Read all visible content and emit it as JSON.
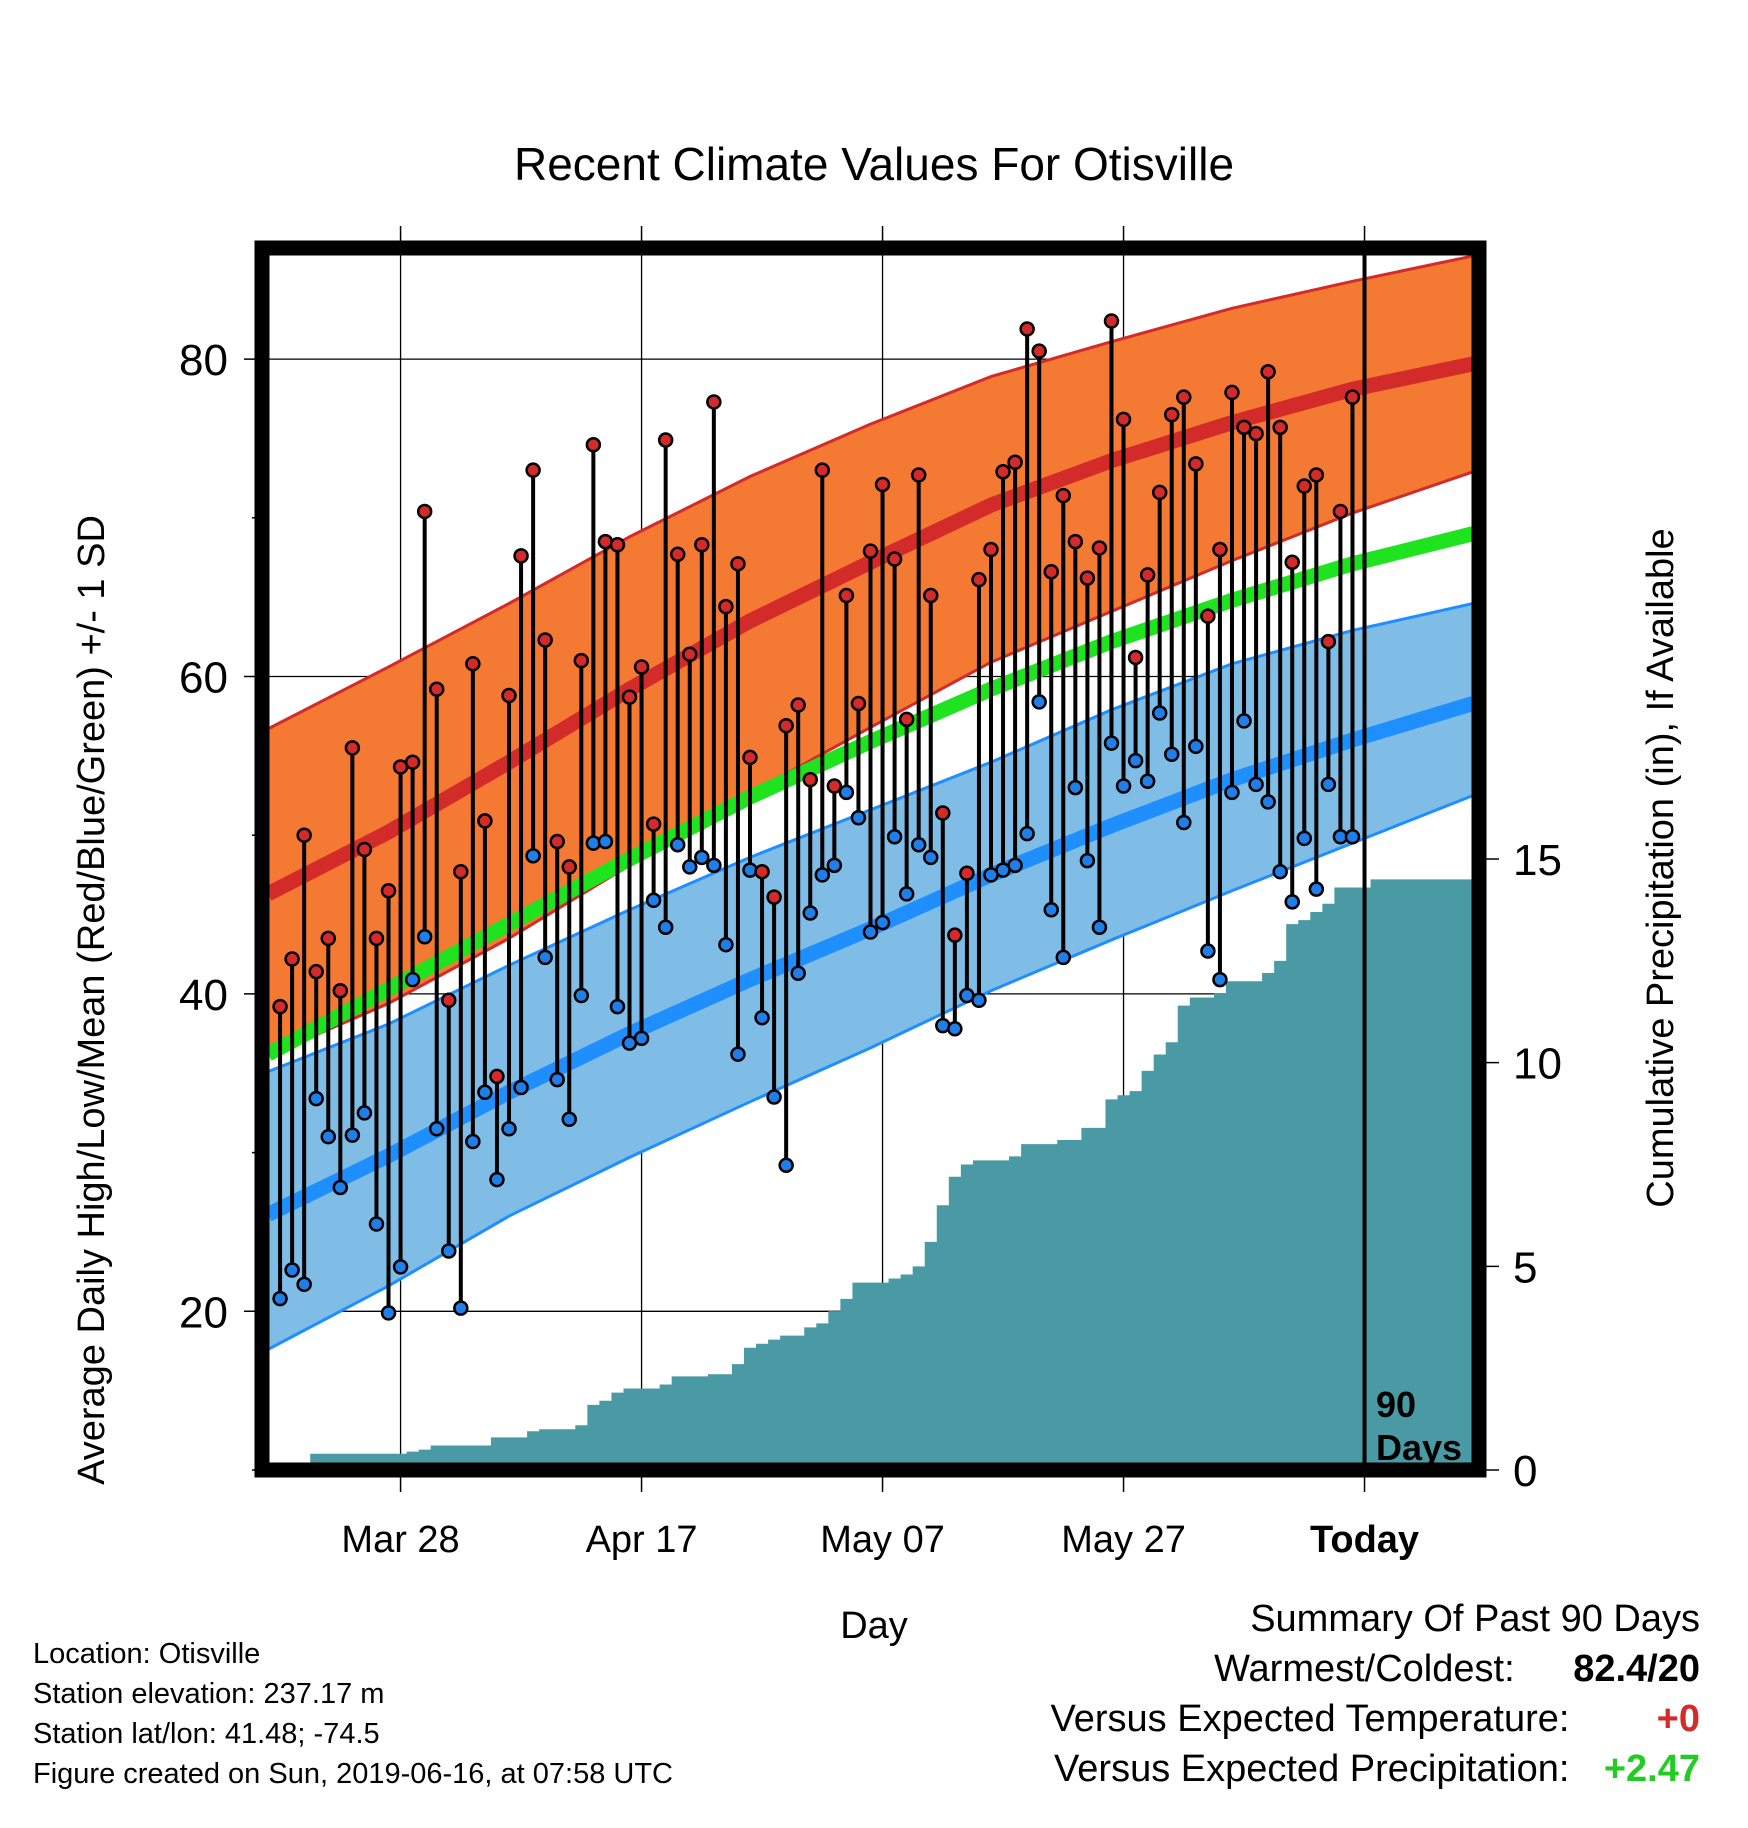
{
  "chart_data": {
    "type": "line",
    "title": "Recent Climate Values For Otisville",
    "xlabel": "Day",
    "ylabel": "Average Daily High/Low/Mean (Red/Blue/Green) +/- 1 SD",
    "y2label": "Cumulative Precipitation (in), If Available",
    "x_tick_labels": [
      "Mar 28",
      "Apr 17",
      "May 07",
      "May 27",
      "Today"
    ],
    "x_tick_days": [
      -80,
      -60,
      -40,
      -20,
      0
    ],
    "xlim_days": [
      -91.5,
      9.5
    ],
    "ylim": [
      10,
      87
    ],
    "y_ticks": [
      20,
      40,
      60,
      80
    ],
    "y2lim": [
      0,
      30
    ],
    "y2_ticks": [
      0,
      5,
      10,
      15
    ],
    "today_marker_label": [
      "90",
      "Days"
    ],
    "grid": true,
    "colors": {
      "high_band": "#f47a33",
      "high_line": "#d32a2a",
      "low_band": "#80bde6",
      "low_line": "#1f8fff",
      "mean_line": "#1ee31e",
      "precip": "#4a9aa5",
      "dot_high": "#d42a2a",
      "dot_low": "#1f7ee8"
    },
    "normals": {
      "days": [
        -91,
        -81,
        -71,
        -61,
        -51,
        -41,
        -31,
        -21,
        -11,
        -1,
        9
      ],
      "high_mean": [
        46.3,
        50.2,
        54.6,
        59.2,
        63.5,
        67.2,
        70.8,
        73.6,
        76.0,
        78.1,
        79.7
      ],
      "high_sd_upper": [
        56.7,
        60.6,
        64.6,
        68.8,
        72.6,
        75.9,
        78.9,
        81.1,
        83.2,
        84.9,
        86.5
      ],
      "high_sd_lower": [
        36.1,
        39.4,
        43.5,
        48.1,
        52.6,
        56.8,
        60.9,
        64.1,
        67.3,
        70.3,
        72.9
      ],
      "mean": [
        36.2,
        40.3,
        44.4,
        48.5,
        52.4,
        55.9,
        59.2,
        62.2,
        64.8,
        67.1,
        69.0
      ],
      "low_mean": [
        26.1,
        29.8,
        33.8,
        37.5,
        40.9,
        44.1,
        47.5,
        50.6,
        53.5,
        56.0,
        58.3
      ],
      "low_sd_upper": [
        35.1,
        38.1,
        41.8,
        45.3,
        48.6,
        51.6,
        54.6,
        57.9,
        60.8,
        62.9,
        64.6
      ],
      "low_sd_lower": [
        17.6,
        21.6,
        26.0,
        29.7,
        33.2,
        36.6,
        40.2,
        43.4,
        46.5,
        49.5,
        52.5
      ]
    },
    "series": [
      {
        "name": "Daily High",
        "values": [
          39.2,
          42.2,
          50.0,
          41.4,
          43.5,
          40.2,
          55.5,
          49.1,
          43.5,
          46.5,
          54.3,
          54.6,
          70.4,
          59.2,
          39.6,
          47.7,
          60.8,
          50.9,
          34.8,
          58.8,
          67.6,
          73.0,
          62.3,
          49.6,
          48.0,
          61.0,
          74.6,
          68.5,
          68.3,
          58.7,
          60.6,
          50.7,
          74.9,
          67.7,
          61.4,
          68.3,
          77.3,
          64.4,
          67.1,
          54.9,
          47.7,
          46.1,
          56.9,
          58.2,
          53.5,
          73.0,
          53.1,
          65.1,
          58.3,
          67.9,
          72.1,
          67.4,
          57.3,
          72.7,
          65.1,
          51.4,
          43.7,
          47.6,
          66.1,
          68.0,
          72.9,
          73.5,
          81.9,
          80.5,
          66.6,
          71.4,
          68.5,
          66.2,
          68.1,
          82.4,
          76.2,
          61.2,
          66.4,
          71.6,
          76.5,
          77.6,
          73.4,
          63.8,
          68.0,
          77.9,
          75.7,
          75.3,
          79.2,
          75.7,
          67.2,
          72.0,
          72.7,
          62.2,
          70.4,
          77.6
        ]
      },
      {
        "name": "Daily Low",
        "values": [
          20.8,
          22.6,
          21.7,
          33.4,
          31.0,
          27.8,
          31.1,
          32.5,
          25.5,
          19.9,
          22.8,
          40.9,
          43.6,
          31.5,
          23.8,
          20.2,
          30.7,
          33.8,
          28.3,
          31.5,
          34.1,
          48.7,
          42.3,
          34.6,
          32.1,
          39.9,
          49.5,
          49.6,
          39.2,
          36.9,
          37.2,
          45.9,
          44.2,
          49.4,
          48.0,
          48.6,
          48.1,
          43.1,
          36.2,
          47.8,
          38.5,
          33.5,
          29.2,
          41.3,
          45.1,
          47.5,
          48.1,
          52.7,
          51.1,
          43.9,
          44.5,
          49.9,
          46.3,
          49.4,
          48.6,
          38.0,
          37.8,
          39.9,
          39.6,
          47.5,
          47.8,
          48.1,
          50.1,
          58.4,
          45.3,
          42.3,
          53.0,
          48.4,
          44.2,
          55.8,
          53.1,
          54.7,
          53.4,
          57.7,
          55.1,
          50.8,
          55.6,
          42.7,
          40.9,
          52.7,
          57.2,
          53.2,
          52.1,
          47.7,
          45.8,
          49.8,
          46.6,
          53.2,
          49.9,
          49.9
        ]
      },
      {
        "name": "Cumulative Precipitation",
        "values": [
          0.0,
          0.0,
          0.0,
          0.0,
          0.4,
          0.4,
          0.4,
          0.4,
          0.4,
          0.4,
          0.4,
          0.4,
          0.45,
          0.5,
          0.6,
          0.6,
          0.6,
          0.6,
          0.6,
          0.8,
          0.8,
          0.8,
          0.95,
          1.0,
          1.0,
          1.0,
          1.1,
          1.6,
          1.7,
          1.9,
          2.0,
          2.0,
          2.0,
          2.1,
          2.3,
          2.3,
          2.3,
          2.35,
          2.35,
          2.6,
          3.0,
          3.1,
          3.2,
          3.3,
          3.3,
          3.5,
          3.6,
          3.9,
          4.2,
          4.6,
          4.6,
          4.6,
          4.7,
          4.8,
          5.0,
          5.6,
          6.5,
          7.2,
          7.5,
          7.6,
          7.6,
          7.6,
          7.7,
          8.0,
          8.0,
          8.0,
          8.1,
          8.1,
          8.4,
          8.4,
          9.1,
          9.2,
          9.3,
          9.8,
          10.2,
          10.5,
          11.4,
          11.6,
          11.6,
          11.7,
          12.0,
          12.0,
          12.0,
          12.2,
          12.5,
          13.4,
          13.5,
          13.7,
          13.9,
          14.3,
          14.3,
          14.3,
          14.5,
          14.5,
          14.5,
          14.5,
          14.5,
          14.5,
          14.5,
          14.5,
          14.5
        ]
      }
    ]
  },
  "info": {
    "location": "Location: Otisville",
    "elevation": "Station elevation: 237.17 m",
    "latlon": "Station lat/lon: 41.48; -74.5",
    "created": "Figure created on Sun, 2019-06-16, at 07:58 UTC"
  },
  "summary": {
    "title": "Summary Of Past 90 Days",
    "warm_cold_label": "Warmest/Coldest:",
    "warm_cold_value": "82.4/20",
    "temp_label": "Versus Expected Temperature:",
    "temp_value": "+0",
    "temp_color": "#d42a2a",
    "precip_label": "Versus Expected Precipitation:",
    "precip_value": "+2.47",
    "precip_color": "#22cc22"
  }
}
